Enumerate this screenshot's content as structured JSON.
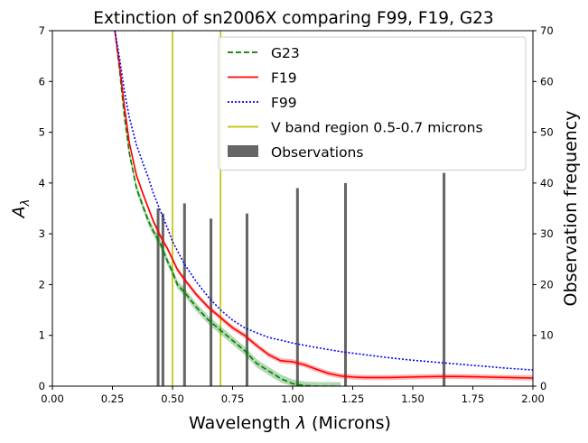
{
  "chart_data": {
    "type": "line",
    "title": "Extinction of sn2006X comparing F99, F19, G23",
    "xlabel": "Wavelength λ (Microns)",
    "ylabel": "A_λ",
    "ylabel_right": "Observation frequency",
    "xlim": [
      0.0,
      2.0
    ],
    "ylim": [
      0,
      7
    ],
    "ylim_right": [
      0,
      70
    ],
    "xticks": [
      "0.00",
      "0.25",
      "0.50",
      "0.75",
      "1.00",
      "1.25",
      "1.50",
      "1.75",
      "2.00"
    ],
    "yticks": [
      "0",
      "1",
      "2",
      "3",
      "4",
      "5",
      "6",
      "7"
    ],
    "yticks_right": [
      "0",
      "10",
      "20",
      "30",
      "40",
      "50",
      "60",
      "70"
    ],
    "legend_position": "top-right",
    "series": [
      {
        "name": "G23",
        "style": "dashed",
        "color": "#008000",
        "x": [
          0.26,
          0.28,
          0.3,
          0.32,
          0.35,
          0.38,
          0.4,
          0.42,
          0.45,
          0.48,
          0.5,
          0.52,
          0.55,
          0.6,
          0.65,
          0.7,
          0.75,
          0.8,
          0.85,
          0.9,
          0.95,
          1.0,
          1.05,
          1.1,
          1.15,
          1.2
        ],
        "y": [
          7.0,
          6.2,
          5.3,
          4.6,
          3.9,
          3.5,
          3.25,
          3.05,
          2.8,
          2.45,
          2.25,
          2.0,
          1.85,
          1.55,
          1.3,
          1.1,
          0.9,
          0.7,
          0.45,
          0.3,
          0.15,
          0.05,
          0.01,
          0.0,
          0.0,
          0.0
        ],
        "band": 0.08
      },
      {
        "name": "F19",
        "style": "solid",
        "color": "#ff0000",
        "x": [
          0.26,
          0.28,
          0.3,
          0.32,
          0.35,
          0.38,
          0.4,
          0.42,
          0.45,
          0.48,
          0.5,
          0.52,
          0.55,
          0.6,
          0.65,
          0.7,
          0.75,
          0.8,
          0.85,
          0.9,
          0.95,
          1.0,
          1.05,
          1.1,
          1.15,
          1.2,
          1.25,
          1.3,
          1.4,
          1.5,
          1.6,
          1.7,
          1.8,
          1.9,
          2.0
        ],
        "y": [
          7.0,
          6.3,
          5.5,
          4.8,
          4.15,
          3.75,
          3.5,
          3.25,
          2.95,
          2.7,
          2.5,
          2.3,
          2.1,
          1.8,
          1.55,
          1.35,
          1.15,
          1.0,
          0.8,
          0.62,
          0.5,
          0.48,
          0.42,
          0.33,
          0.25,
          0.2,
          0.18,
          0.17,
          0.17,
          0.18,
          0.19,
          0.19,
          0.18,
          0.17,
          0.16
        ],
        "band": 0.05
      },
      {
        "name": "F99",
        "style": "dotted",
        "color": "#0000ff",
        "x": [
          0.26,
          0.28,
          0.3,
          0.32,
          0.35,
          0.38,
          0.4,
          0.42,
          0.45,
          0.48,
          0.5,
          0.55,
          0.6,
          0.65,
          0.7,
          0.75,
          0.8,
          0.85,
          0.9,
          1.0,
          1.1,
          1.2,
          1.3,
          1.4,
          1.5,
          1.6,
          1.7,
          1.8,
          1.9,
          2.0
        ],
        "y": [
          7.0,
          6.45,
          5.8,
          5.3,
          4.75,
          4.35,
          4.1,
          3.8,
          3.45,
          3.1,
          2.85,
          2.4,
          2.05,
          1.75,
          1.5,
          1.3,
          1.15,
          1.05,
          0.96,
          0.85,
          0.76,
          0.68,
          0.62,
          0.56,
          0.51,
          0.47,
          0.43,
          0.39,
          0.35,
          0.32
        ]
      }
    ],
    "v_band": {
      "name": "V band region 0.5-0.7 microns",
      "color": "#bfbf00",
      "lines": [
        0.5,
        0.7
      ]
    },
    "observations": {
      "name": "Observations",
      "color": "#666666",
      "axis": "right",
      "x": [
        0.44,
        0.46,
        0.55,
        0.66,
        0.81,
        1.02,
        1.22,
        1.63
      ],
      "values": [
        35,
        34,
        36,
        33,
        34,
        39,
        40,
        42
      ]
    }
  }
}
